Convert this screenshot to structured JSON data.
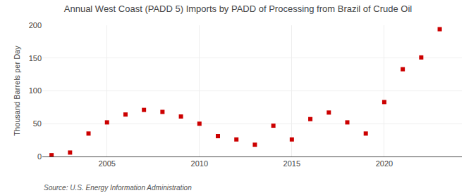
{
  "chart_data": {
    "type": "scatter",
    "title": "Annual West Coast (PADD 5) Imports by PADD of Processing from Brazil of Crude Oil",
    "ylabel": "Thousand Barrels per Day",
    "annotations": [
      "Source: U.S. Energy Information Administration"
    ],
    "x": [
      2002,
      2003,
      2004,
      2005,
      2006,
      2007,
      2008,
      2009,
      2010,
      2011,
      2012,
      2013,
      2014,
      2015,
      2016,
      2017,
      2018,
      2019,
      2020,
      2021,
      2022,
      2023
    ],
    "values": [
      2,
      6,
      35,
      52,
      64,
      71,
      68,
      61,
      50,
      31,
      26,
      18,
      47,
      26,
      57,
      67,
      52,
      35,
      83,
      133,
      151,
      194
    ],
    "color": "#cc0000",
    "marker": "square",
    "xlim": [
      2001.5,
      2024.2
    ],
    "xticks": [
      2005,
      2010,
      2015,
      2020
    ],
    "ylim": [
      0,
      200
    ],
    "yticks": [
      0,
      50,
      100,
      150,
      200
    ],
    "grid": true
  }
}
